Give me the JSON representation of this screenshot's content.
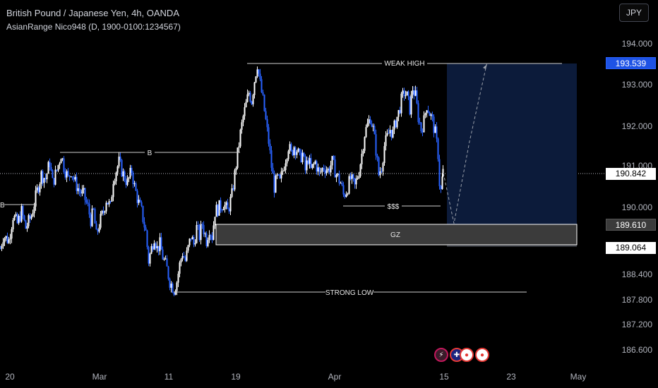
{
  "header": {
    "title": "British Pound / Japanese Yen, 4h, OANDA",
    "indicator": "AsianRange Nico948 (D, 1900-0100:1234567)",
    "currency_button": "JPY"
  },
  "price_axis": {
    "ticks": [
      "194.000",
      "193.000",
      "192.000",
      "191.000",
      "190.000",
      "188.400",
      "187.800",
      "187.200",
      "186.600"
    ],
    "badges": [
      {
        "value": "193.539",
        "style": "target"
      },
      {
        "value": "190.842",
        "style": "current"
      },
      {
        "value": "189.610",
        "style": "zone"
      },
      {
        "value": "189.064",
        "style": "stop"
      }
    ]
  },
  "time_axis": {
    "ticks": [
      "20",
      "Mar",
      "11",
      "19",
      "Apr",
      "15",
      "23",
      "May"
    ]
  },
  "annotations": {
    "weak_high": "WEAK HIGH",
    "b": "B",
    "b_left": "B",
    "sss": "$$$",
    "gz": "GZ",
    "strong_low": "STRONG LOW"
  },
  "colors": {
    "up": "#ffffff",
    "down": "#2962ff",
    "background": "#000000",
    "projection_box": "#0c1b3a",
    "zone": "#3a3a3a"
  },
  "chart_data": {
    "type": "candlestick",
    "title": "British Pound / Japanese Yen, 4h, OANDA",
    "x_labels": [
      "20",
      "Mar",
      "11",
      "19",
      "Apr",
      "15",
      "23",
      "May"
    ],
    "ylim": [
      186.3,
      194.3
    ],
    "levels": [
      {
        "name": "WEAK HIGH",
        "price": 193.539
      },
      {
        "name": "B",
        "price": 191.35
      },
      {
        "name": "$$$",
        "price": 190.02
      },
      {
        "name": "GZ top",
        "price": 189.61
      },
      {
        "name": "GZ bottom",
        "price": 189.064
      },
      {
        "name": "STRONG LOW",
        "price": 187.95
      }
    ],
    "last_price": 190.842,
    "path": [
      [
        0,
        189.0
      ],
      [
        4,
        189.3
      ],
      [
        12,
        189.2
      ],
      [
        18,
        189.8
      ],
      [
        24,
        189.6
      ],
      [
        30,
        189.9
      ],
      [
        36,
        189.5
      ],
      [
        44,
        189.8
      ],
      [
        52,
        190.4
      ],
      [
        58,
        190.8
      ],
      [
        64,
        190.7
      ],
      [
        70,
        191.1
      ],
      [
        74,
        190.6
      ],
      [
        80,
        190.9
      ],
      [
        86,
        191.3
      ],
      [
        90,
        191.0
      ],
      [
        96,
        190.7
      ],
      [
        100,
        190.9
      ],
      [
        106,
        190.6
      ],
      [
        112,
        190.4
      ],
      [
        118,
        190.3
      ],
      [
        124,
        190.0
      ],
      [
        128,
        189.7
      ],
      [
        132,
        189.9
      ],
      [
        136,
        189.3
      ],
      [
        140,
        189.6
      ],
      [
        146,
        189.9
      ],
      [
        150,
        190.2
      ],
      [
        156,
        190.0
      ],
      [
        160,
        190.7
      ],
      [
        164,
        190.9
      ],
      [
        168,
        191.1
      ],
      [
        174,
        190.8
      ],
      [
        180,
        190.6
      ],
      [
        186,
        190.9
      ],
      [
        190,
        190.5
      ],
      [
        196,
        190.1
      ],
      [
        200,
        189.9
      ],
      [
        206,
        189.4
      ],
      [
        210,
        188.7
      ],
      [
        214,
        189.0
      ],
      [
        218,
        189.3
      ],
      [
        222,
        189.0
      ],
      [
        226,
        189.1
      ],
      [
        230,
        188.8
      ],
      [
        236,
        188.5
      ],
      [
        240,
        188.2
      ],
      [
        246,
        188.0
      ],
      [
        250,
        188.2
      ],
      [
        254,
        188.6
      ],
      [
        258,
        188.9
      ],
      [
        262,
        188.7
      ],
      [
        266,
        189.0
      ],
      [
        270,
        189.3
      ],
      [
        274,
        189.1
      ],
      [
        278,
        189.5
      ],
      [
        282,
        189.3
      ],
      [
        286,
        189.6
      ],
      [
        292,
        189.2
      ],
      [
        296,
        189.5
      ],
      [
        300,
        189.3
      ],
      [
        304,
        189.9
      ],
      [
        310,
        190.0
      ],
      [
        316,
        190.1
      ],
      [
        322,
        189.9
      ],
      [
        328,
        190.3
      ],
      [
        332,
        190.8
      ],
      [
        336,
        191.3
      ],
      [
        340,
        191.8
      ],
      [
        344,
        192.2
      ],
      [
        348,
        192.5
      ],
      [
        352,
        192.8
      ],
      [
        356,
        192.6
      ],
      [
        360,
        193.1
      ],
      [
        364,
        193.5
      ],
      [
        368,
        193.0
      ],
      [
        372,
        192.6
      ],
      [
        376,
        192.1
      ],
      [
        380,
        191.6
      ],
      [
        384,
        191.0
      ],
      [
        388,
        190.5
      ],
      [
        392,
        190.7
      ],
      [
        396,
        190.6
      ],
      [
        400,
        190.9
      ],
      [
        404,
        191.2
      ],
      [
        408,
        191.5
      ],
      [
        412,
        191.3
      ],
      [
        416,
        191.5
      ],
      [
        420,
        191.4
      ],
      [
        424,
        191.2
      ],
      [
        428,
        191.3
      ],
      [
        432,
        190.9
      ],
      [
        436,
        191.2
      ],
      [
        440,
        190.9
      ],
      [
        446,
        191.1
      ],
      [
        452,
        190.8
      ],
      [
        458,
        191.0
      ],
      [
        464,
        190.9
      ],
      [
        470,
        191.1
      ],
      [
        476,
        190.8
      ],
      [
        482,
        190.6
      ],
      [
        486,
        190.3
      ],
      [
        490,
        190.4
      ],
      [
        496,
        190.7
      ],
      [
        502,
        190.5
      ],
      [
        508,
        190.9
      ],
      [
        512,
        191.3
      ],
      [
        516,
        191.8
      ],
      [
        520,
        192.0
      ],
      [
        524,
        192.2
      ],
      [
        528,
        191.9
      ],
      [
        532,
        191.4
      ],
      [
        536,
        190.8
      ],
      [
        540,
        191.0
      ],
      [
        544,
        191.5
      ],
      [
        548,
        191.7
      ],
      [
        552,
        191.9
      ],
      [
        556,
        191.8
      ],
      [
        560,
        192.1
      ],
      [
        564,
        192.3
      ],
      [
        568,
        192.6
      ],
      [
        572,
        192.8
      ],
      [
        576,
        192.7
      ],
      [
        580,
        192.4
      ],
      [
        584,
        192.9
      ],
      [
        588,
        192.7
      ],
      [
        592,
        192.2
      ],
      [
        596,
        191.9
      ],
      [
        600,
        192.1
      ],
      [
        604,
        192.5
      ],
      [
        608,
        192.3
      ],
      [
        612,
        192.1
      ],
      [
        616,
        191.8
      ],
      [
        620,
        191.3
      ],
      [
        622,
        190.6
      ],
      [
        624,
        190.4
      ],
      [
        627,
        190.84
      ]
    ],
    "projection": [
      [
        628,
        190.84
      ],
      [
        643,
        189.61
      ],
      [
        665,
        191.6
      ],
      [
        690,
        193.539
      ]
    ]
  }
}
